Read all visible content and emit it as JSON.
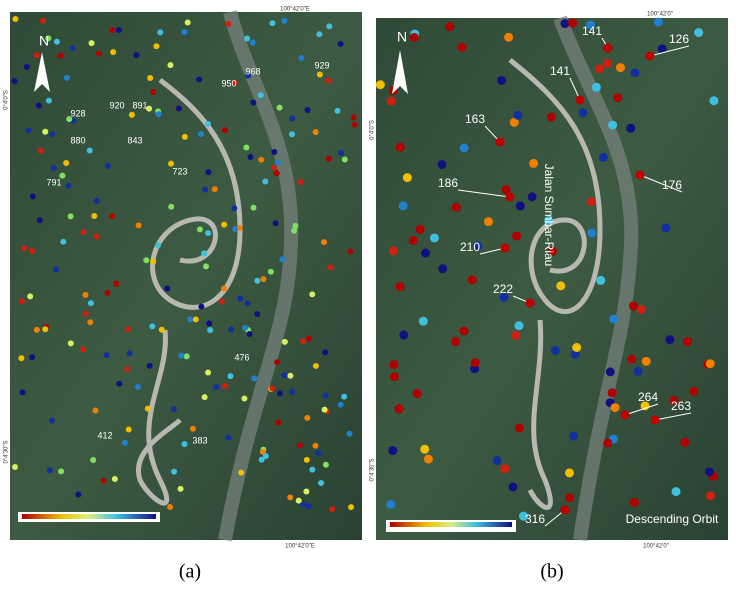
{
  "panels": [
    {
      "caption": "(a)",
      "north": "N",
      "coords": [
        "100°42'0\"E",
        "0°4'0\"S",
        "0°4'30\"S",
        "100°42'0\"E"
      ],
      "labels": [
        968,
        929,
        950,
        928,
        920,
        891,
        880,
        843,
        791,
        723,
        476,
        412,
        383
      ]
    },
    {
      "caption": "(b)",
      "north": "N",
      "coords": [
        "100°42'0\"",
        "0°4'0\"S",
        "0°4'30\"S",
        "100°42'0\""
      ],
      "road_name": "Jalan Sumbar-Riau",
      "orbit": "Descending Orbit",
      "labels": [
        141,
        126,
        141,
        163,
        176,
        186,
        210,
        222,
        264,
        263,
        316
      ]
    }
  ]
}
